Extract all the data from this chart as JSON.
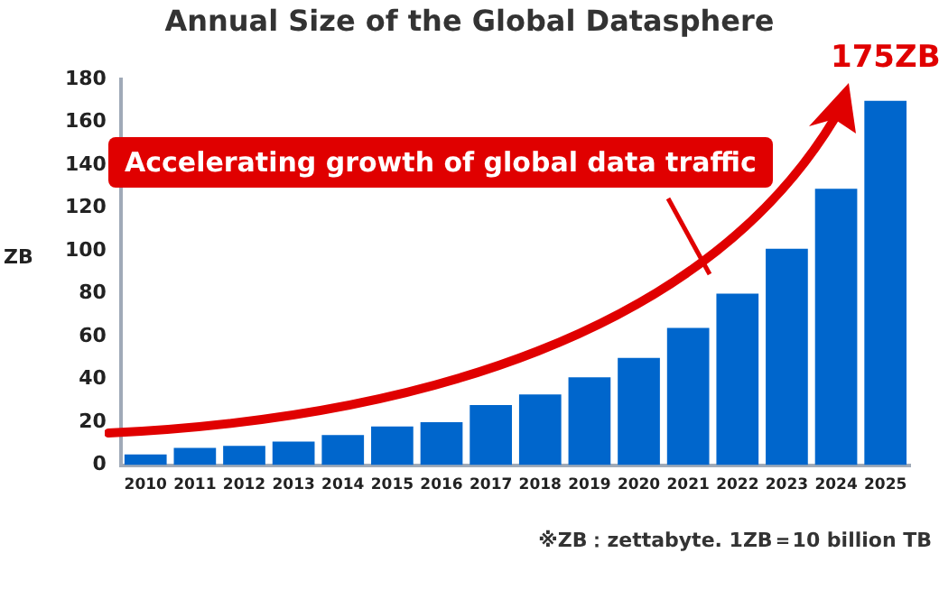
{
  "chart_data": {
    "type": "bar",
    "title": "Annual Size of the Global Datasphere",
    "ylabel": "ZB",
    "categories": [
      "2010",
      "2011",
      "2012",
      "2013",
      "2014",
      "2015",
      "2016",
      "2017",
      "2018",
      "2019",
      "2020",
      "2021",
      "2022",
      "2023",
      "2024",
      "2025"
    ],
    "values": [
      5,
      8,
      9,
      11,
      14,
      18,
      20,
      28,
      33,
      41,
      50,
      64,
      80,
      101,
      129,
      170
    ],
    "color": "#0066cc",
    "ylim": [
      0,
      180
    ],
    "yticks": [
      0,
      20,
      40,
      60,
      80,
      100,
      120,
      140,
      160,
      180
    ],
    "grid": false,
    "legend": false,
    "annotations": [
      "175ZB",
      "Accelerating growth of global data traffic",
      "※ZB：zettabyte. 1ZB＝10 billion TB"
    ]
  }
}
